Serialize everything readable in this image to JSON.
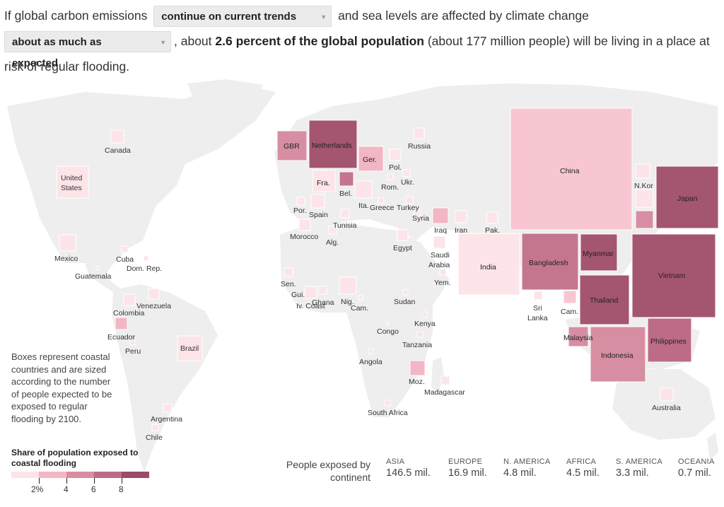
{
  "intro": {
    "p1": "If global carbon emissions",
    "select1": "continue on current trends",
    "p2": "and sea levels are affected by climate change",
    "select2": "about as much as expected",
    "p3": ", about",
    "bold": "2.6 percent of the global population",
    "p4": "(about 177 million people) will be living in a place at risk of regular flooding."
  },
  "countries": {
    "canada": "Canada",
    "us_1": "United",
    "us_2": "States",
    "mexico": "Mexico",
    "cuba": "Cuba",
    "domrep": "Dom. Rep.",
    "guatemala": "Guatemala",
    "venezuela": "Venezuela",
    "colombia": "Colombia",
    "ecuador": "Ecuador",
    "peru": "Peru",
    "brazil": "Brazil",
    "argentina": "Argentina",
    "chile": "Chile",
    "gbr": "GBR",
    "netherlands": "Netherlands",
    "germany": "Ger.",
    "russia": "Russia",
    "france": "Fra.",
    "belgium": "Bel.",
    "poland": "Pol.",
    "ukraine": "Ukr.",
    "romania": "Rom.",
    "italy": "Ita.",
    "greece": "Greece",
    "turkey": "Turkey",
    "portugal": "Por.",
    "spain": "Spain",
    "tunisia": "Tunisia",
    "morocco": "Morocco",
    "algeria": "Alg.",
    "syria": "Syria",
    "iraq": "Iraq",
    "iran": "Iran",
    "pakistan": "Pak.",
    "egypt": "Egypt",
    "saudi_1": "Saudi",
    "saudi_2": "Arabia",
    "yemen": "Yem.",
    "india": "India",
    "china": "China",
    "nkorea": "N.Kor",
    "japan": "Japan",
    "bangladesh": "Bangladesh",
    "myanmar": "Myanmar",
    "vietnam": "Vietnam",
    "thailand": "Thailand",
    "srilanka_1": "Sri",
    "srilanka_2": "Lanka",
    "cambodia": "Cam.",
    "malaysia": "Malaysia",
    "indonesia": "Indonesia",
    "philippines": "Philippines",
    "australia": "Australia",
    "senegal": "Sen.",
    "guinea": "Gui.",
    "ivorycoast": "Iv. Coast",
    "ghana": "Ghana",
    "nigeria": "Nig.",
    "cameroon": "Cam.",
    "sudan": "Sudan",
    "kenya": "Kenya",
    "congo": "Congo",
    "tanzania": "Tanzania",
    "angola": "Angola",
    "mozambique": "Moz.",
    "madagascar": "Madagascar",
    "southafrica": "South Africa"
  },
  "note": "Boxes represent coastal countries and are sized according to the number of people expected to be exposed to regular flooding by 2100.",
  "legend": {
    "title": "Share of population exposed to coastal flooding",
    "ticks": [
      "2%",
      "4",
      "6",
      "8"
    ],
    "colors": [
      "#fce4e8",
      "#f2b6c4",
      "#d88ea2",
      "#bc6c86",
      "#9a4c6a"
    ]
  },
  "continents": {
    "label": "People exposed by continent",
    "items": [
      {
        "name": "Asia",
        "value": "146.5 mil."
      },
      {
        "name": "Europe",
        "value": "16.9 mil."
      },
      {
        "name": "N. America",
        "value": "4.8 mil."
      },
      {
        "name": "Africa",
        "value": "4.5 mil."
      },
      {
        "name": "S. America",
        "value": "3.3 mil."
      },
      {
        "name": "Oceania",
        "value": "0.7 mil."
      }
    ]
  }
}
